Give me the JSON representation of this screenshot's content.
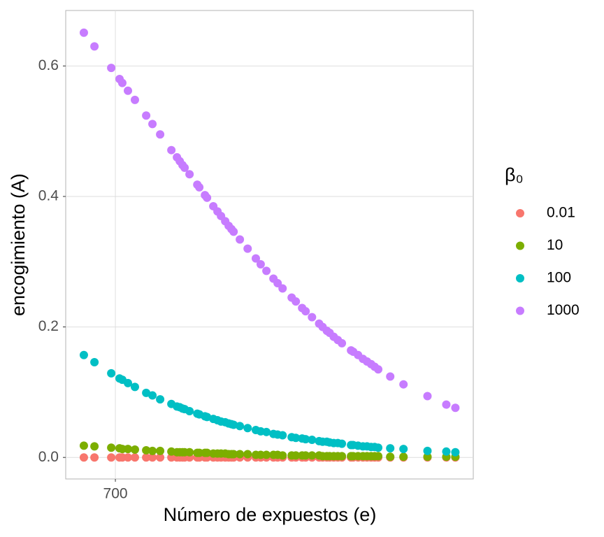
{
  "chart_data": {
    "type": "scatter",
    "x_label": "Número de expuestos (e)",
    "y_label": "encogimiento (A)",
    "legend_title": "β₀",
    "log_x": true,
    "grid": true,
    "legend_position": "right",
    "xlim": [
      461,
      14200
    ],
    "xticks": [
      700
    ],
    "ylim": [
      -0.033,
      0.685
    ],
    "yticks": [
      {
        "value": 0,
        "label": "0.0"
      },
      0.2,
      0.4,
      0.6
    ],
    "x": [
      537,
      587,
      676,
      725,
      742,
      778,
      825,
      907,
      956,
      1020,
      1121,
      1175,
      1203,
      1231,
      1253,
      1306,
      1394,
      1418,
      1487,
      1513,
      1595,
      1652,
      1702,
      1763,
      1815,
      1858,
      1892,
      1994,
      2129,
      2281,
      2376,
      2493,
      2645,
      2740,
      2856,
      3083,
      3193,
      3366,
      3467,
      3658,
      3884,
      4000,
      4145,
      4243,
      4391,
      4545,
      4704,
      5079,
      5172,
      5389,
      5614,
      5811,
      6013,
      6195,
      6384,
      7063,
      7896,
      9660,
      11319,
      12215
    ],
    "series": [
      {
        "name": "0.01",
        "color": "#F8766D",
        "values": [
          0,
          0,
          0,
          0,
          0,
          0,
          0,
          0,
          0,
          0,
          0,
          0,
          0,
          0,
          0,
          0,
          0,
          0,
          0,
          0,
          0,
          0,
          0,
          0,
          0,
          0,
          0,
          0,
          0,
          0,
          0,
          0,
          0,
          0,
          0,
          0,
          0,
          0,
          0,
          0,
          0,
          0,
          0,
          0,
          0,
          0,
          0,
          0,
          0,
          0,
          0,
          0,
          0,
          0,
          0,
          0,
          0,
          0,
          0,
          0
        ]
      },
      {
        "name": "10",
        "color": "#7CAE00",
        "values": [
          0.018,
          0.017,
          0.015,
          0.014,
          0.013,
          0.013,
          0.012,
          0.011,
          0.01,
          0.01,
          0.009,
          0.008,
          0.008,
          0.008,
          0.008,
          0.008,
          0.007,
          0.007,
          0.007,
          0.007,
          0.006,
          0.006,
          0.006,
          0.006,
          0.005,
          0.005,
          0.005,
          0.005,
          0.005,
          0.004,
          0.004,
          0.004,
          0.004,
          0.004,
          0.003,
          0.003,
          0.003,
          0.003,
          0.003,
          0.003,
          0.003,
          0.002,
          0.002,
          0.002,
          0.002,
          0.002,
          0.002,
          0.002,
          0.002,
          0.002,
          0.002,
          0.002,
          0.002,
          0.002,
          0.002,
          0.001,
          0.001,
          0.001,
          0.001,
          0.001
        ]
      },
      {
        "name": "100",
        "color": "#00BFC4",
        "values": [
          0.157,
          0.146,
          0.129,
          0.121,
          0.119,
          0.114,
          0.108,
          0.099,
          0.095,
          0.089,
          0.082,
          0.078,
          0.077,
          0.075,
          0.074,
          0.071,
          0.067,
          0.066,
          0.063,
          0.062,
          0.059,
          0.057,
          0.055,
          0.054,
          0.052,
          0.051,
          0.05,
          0.048,
          0.045,
          0.042,
          0.04,
          0.039,
          0.036,
          0.035,
          0.034,
          0.031,
          0.03,
          0.029,
          0.028,
          0.027,
          0.025,
          0.024,
          0.024,
          0.023,
          0.022,
          0.022,
          0.021,
          0.019,
          0.019,
          0.018,
          0.017,
          0.017,
          0.016,
          0.016,
          0.015,
          0.014,
          0.013,
          0.01,
          0.009,
          0.008
        ]
      },
      {
        "name": "1000",
        "color": "#C77CFF",
        "values": [
          0.651,
          0.63,
          0.597,
          0.58,
          0.574,
          0.562,
          0.548,
          0.524,
          0.511,
          0.495,
          0.471,
          0.46,
          0.454,
          0.448,
          0.444,
          0.434,
          0.418,
          0.414,
          0.402,
          0.398,
          0.385,
          0.377,
          0.37,
          0.362,
          0.355,
          0.35,
          0.346,
          0.334,
          0.32,
          0.305,
          0.296,
          0.286,
          0.274,
          0.267,
          0.259,
          0.245,
          0.239,
          0.229,
          0.224,
          0.215,
          0.205,
          0.2,
          0.194,
          0.191,
          0.185,
          0.18,
          0.175,
          0.164,
          0.162,
          0.157,
          0.151,
          0.147,
          0.143,
          0.139,
          0.135,
          0.124,
          0.112,
          0.094,
          0.081,
          0.076
        ]
      }
    ]
  }
}
